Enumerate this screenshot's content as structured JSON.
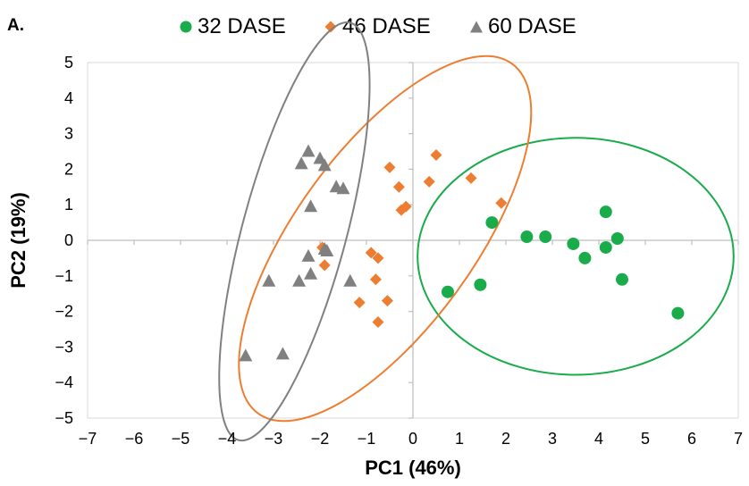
{
  "panel_label": "A.",
  "chart_data": {
    "type": "scatter",
    "title": "",
    "xlabel": "PC1 (46%)",
    "ylabel": "PC2 (19%)",
    "xlim": [
      -7,
      7
    ],
    "ylim": [
      -5,
      5
    ],
    "xticks": [
      "−7",
      "−6",
      "−5",
      "−4",
      "−3",
      "−2",
      "−1",
      "0",
      "1",
      "2",
      "3",
      "4",
      "5",
      "6",
      "7"
    ],
    "yticks": [
      "5",
      "4",
      "3",
      "2",
      "1",
      "0",
      "−1",
      "−2",
      "−3",
      "−4",
      "−5"
    ],
    "grid": false,
    "legend_position": "top-center",
    "series": [
      {
        "name": "32 DASE",
        "marker": "circle",
        "color": "#1aab4b",
        "points": [
          [
            1.7,
            0.5
          ],
          [
            0.75,
            -1.45
          ],
          [
            1.45,
            -1.25
          ],
          [
            2.45,
            0.1
          ],
          [
            2.85,
            0.1
          ],
          [
            3.45,
            -0.1
          ],
          [
            3.7,
            -0.5
          ],
          [
            4.15,
            0.8
          ],
          [
            4.15,
            -0.2
          ],
          [
            4.4,
            0.05
          ],
          [
            4.5,
            -1.1
          ],
          [
            5.7,
            -2.05
          ]
        ],
        "ellipse": {
          "cx": 3.5,
          "cy": -0.45,
          "rx": 3.4,
          "ry": 2.55,
          "angle_deg": 0
        }
      },
      {
        "name": "46 DASE",
        "marker": "diamond",
        "color": "#ed7d31",
        "points": [
          [
            -0.5,
            2.05
          ],
          [
            0.5,
            2.4
          ],
          [
            -0.3,
            1.5
          ],
          [
            0.35,
            1.65
          ],
          [
            1.25,
            1.75
          ],
          [
            1.9,
            1.05
          ],
          [
            -0.25,
            0.85
          ],
          [
            -0.15,
            0.95
          ],
          [
            -1.95,
            -0.2
          ],
          [
            -1.9,
            -0.7
          ],
          [
            -0.9,
            -0.35
          ],
          [
            -0.75,
            -0.5
          ],
          [
            -0.8,
            -1.1
          ],
          [
            -1.15,
            -1.75
          ],
          [
            -0.55,
            -1.7
          ],
          [
            -0.75,
            -2.3
          ]
        ],
        "ellipse": {
          "cx": -0.6,
          "cy": 0.05,
          "rx": 4.65,
          "ry": 1.92,
          "angle_deg": 54
        }
      },
      {
        "name": "60 DASE",
        "marker": "triangle",
        "color": "#808080",
        "points": [
          [
            -2.25,
            2.5
          ],
          [
            -2.0,
            2.3
          ],
          [
            -2.4,
            2.15
          ],
          [
            -1.9,
            2.1
          ],
          [
            -1.65,
            1.5
          ],
          [
            -1.5,
            1.45
          ],
          [
            -2.2,
            0.95
          ],
          [
            -1.9,
            -0.25
          ],
          [
            -1.85,
            -0.3
          ],
          [
            -2.25,
            -0.45
          ],
          [
            -2.2,
            -0.95
          ],
          [
            -2.45,
            -1.15
          ],
          [
            -1.35,
            -1.15
          ],
          [
            -3.1,
            -1.15
          ],
          [
            -3.6,
            -3.25
          ],
          [
            -2.8,
            -3.2
          ]
        ],
        "ellipse": {
          "cx": -2.55,
          "cy": 0.25,
          "rx": 4.65,
          "ry": 1.12,
          "angle_deg": 75
        }
      }
    ]
  }
}
